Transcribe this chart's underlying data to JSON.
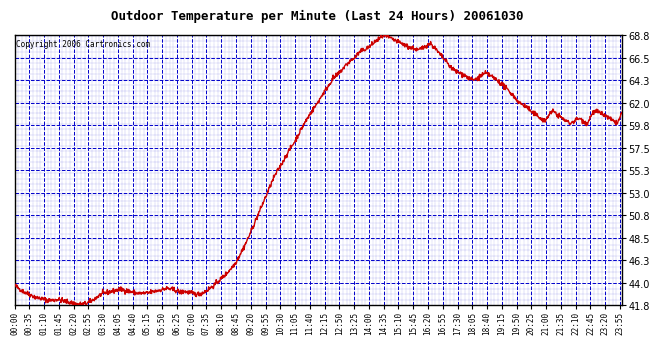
{
  "title": "Outdoor Temperature per Minute (Last 24 Hours) 20061030",
  "copyright_text": "Copyright 2006 Cartronics.com",
  "line_color": "#cc0000",
  "background_color": "#ffffff",
  "plot_bg_color": "#ffffff",
  "grid_color": "#0000cc",
  "tick_label_color": "#000000",
  "title_color": "#000000",
  "ylim": [
    41.8,
    68.8
  ],
  "yticks": [
    41.8,
    44.0,
    46.3,
    48.5,
    50.8,
    53.0,
    55.3,
    57.5,
    59.8,
    62.0,
    64.3,
    66.5,
    68.8
  ],
  "line_width": 1.0,
  "temperature_profile": [
    43.8,
    43.5,
    43.2,
    43.0,
    42.8,
    42.6,
    42.5,
    42.4,
    42.3,
    42.3,
    42.4,
    42.3,
    42.2,
    42.1,
    42.0,
    41.9,
    41.9,
    42.0,
    42.2,
    42.5,
    42.8,
    43.0,
    43.1,
    43.2,
    43.3,
    43.4,
    43.3,
    43.2,
    43.1,
    43.0,
    43.0,
    43.0,
    43.1,
    43.2,
    43.3,
    43.4,
    43.5,
    43.4,
    43.3,
    43.1,
    43.2,
    43.1,
    43.0,
    42.9,
    43.0,
    43.2,
    43.5,
    43.8,
    44.2,
    44.6,
    45.0,
    45.5,
    46.0,
    46.8,
    47.6,
    48.5,
    49.5,
    50.5,
    51.5,
    52.5,
    53.5,
    54.5,
    55.3,
    56.0,
    56.8,
    57.5,
    58.2,
    59.0,
    59.8,
    60.5,
    61.2,
    61.8,
    62.5,
    63.2,
    63.8,
    64.5,
    64.8,
    65.3,
    65.8,
    66.2,
    66.5,
    67.0,
    67.3,
    67.5,
    67.8,
    68.2,
    68.5,
    68.8,
    68.6,
    68.4,
    68.2,
    68.0,
    67.8,
    67.6,
    67.5,
    67.3,
    67.5,
    67.8,
    68.0,
    67.5,
    67.0,
    66.5,
    66.0,
    65.5,
    65.2,
    65.0,
    64.8,
    64.5,
    64.3,
    64.5,
    64.8,
    65.0,
    64.8,
    64.5,
    64.2,
    63.8,
    63.4,
    63.0,
    62.5,
    62.0,
    61.8,
    61.5,
    61.0,
    60.8,
    60.5,
    60.2,
    61.0,
    61.2,
    60.8,
    60.5,
    60.2,
    60.0,
    60.3,
    60.5,
    60.2,
    60.0,
    61.0,
    61.2,
    61.0,
    60.8,
    60.5,
    60.2,
    60.0,
    61.0
  ],
  "xtick_labels": [
    "00:00",
    "00:35",
    "01:10",
    "01:45",
    "02:20",
    "02:55",
    "03:30",
    "04:05",
    "04:40",
    "05:15",
    "05:50",
    "06:25",
    "07:00",
    "07:35",
    "08:10",
    "08:45",
    "09:20",
    "09:55",
    "10:30",
    "11:05",
    "11:40",
    "12:15",
    "12:50",
    "13:25",
    "14:00",
    "14:35",
    "15:10",
    "15:45",
    "16:20",
    "16:55",
    "17:30",
    "18:05",
    "18:40",
    "19:15",
    "19:50",
    "20:25",
    "21:00",
    "21:35",
    "22:10",
    "22:45",
    "23:20",
    "23:55"
  ]
}
